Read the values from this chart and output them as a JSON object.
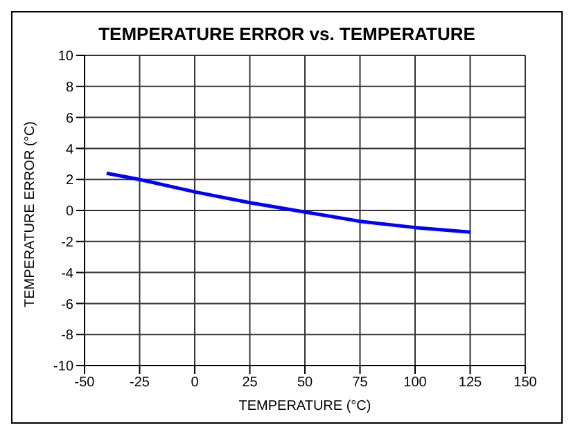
{
  "chart_data": {
    "type": "line",
    "title": "TEMPERATURE ERROR vs. TEMPERATURE",
    "xlabel": "TEMPERATURE (°C)",
    "ylabel": "TEMPERATURE ERROR (°C)",
    "x": [
      -40,
      -25,
      0,
      25,
      50,
      75,
      100,
      125
    ],
    "series": [
      {
        "color": "#0000ff",
        "values": [
          2.4,
          2.0,
          1.2,
          0.5,
          -0.1,
          -0.7,
          -1.1,
          -1.4
        ]
      }
    ],
    "xlim": [
      -50,
      150
    ],
    "xticks": [
      -50,
      -25,
      0,
      25,
      50,
      75,
      100,
      125,
      150
    ],
    "ylim": [
      -10,
      10
    ],
    "yticks": [
      -10,
      -8,
      -6,
      -4,
      -2,
      0,
      2,
      4,
      6,
      8,
      10
    ],
    "grid": true,
    "marker": "none",
    "line_style": "solid",
    "legend": false
  }
}
